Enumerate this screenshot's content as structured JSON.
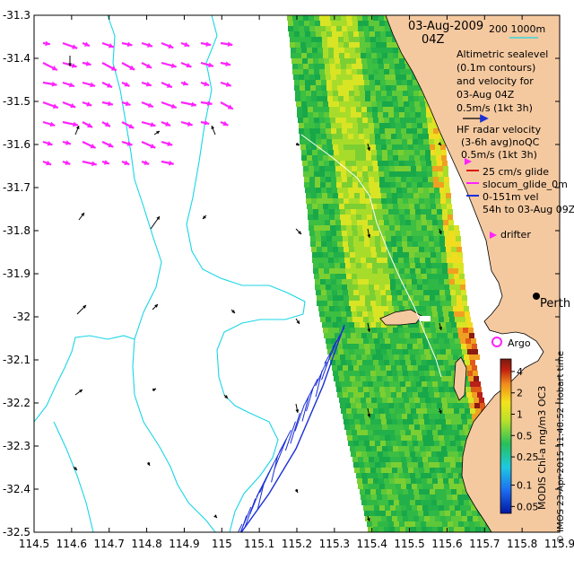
{
  "map": {
    "date": "03-Aug-2009",
    "time": "04Z",
    "scale_text": "200  1000m",
    "legend": {
      "altimetry": [
        "Altimetric sealevel",
        "(0.1m contours)",
        "and velocity for",
        "03-Aug 04Z",
        "0.5m/s (1kt 3h)"
      ],
      "hf_radar": [
        "HF radar velocity",
        "(3-6h avg)noQC",
        "0.5m/s (1kt 3h)"
      ],
      "glider": [
        "25 cm/s glide",
        "slocum_glide_0m",
        "0-151m vel",
        "54h to 03-Aug 09Z"
      ],
      "drifter": "drifter",
      "argo": "Argo",
      "city": "Perth"
    },
    "colorbar": {
      "title": "MODIS Chl-a mg/m3 OC3",
      "ticks": [
        "4",
        "2",
        "1",
        "0.5",
        "0.25",
        "0.1",
        "0.05"
      ],
      "tick_values": [
        4,
        2,
        1,
        0.5,
        0.25,
        0.1,
        0.05
      ]
    },
    "credit": "© IMOS 23-Apr-2015 11:48:52 Hobart time",
    "x_axis": {
      "ticks": [
        "114.5",
        "114.6",
        "114.7",
        "114.8",
        "114.9",
        "115",
        "115.1",
        "115.2",
        "115.3",
        "115.4",
        "115.5",
        "115.6",
        "115.7",
        "115.8",
        "115.9"
      ],
      "values": [
        114.5,
        114.6,
        114.7,
        114.8,
        114.9,
        115.0,
        115.1,
        115.2,
        115.3,
        115.4,
        115.5,
        115.6,
        115.7,
        115.8,
        115.9
      ]
    },
    "y_axis": {
      "ticks": [
        "-31.3",
        "-31.4",
        "-31.5",
        "-31.6",
        "-31.7",
        "-31.8",
        "-31.9",
        "-32",
        "-32.1",
        "-32.2",
        "-32.3",
        "-32.4",
        "-32.5"
      ],
      "values": [
        -31.3,
        -31.4,
        -31.5,
        -31.6,
        -31.7,
        -31.8,
        -31.9,
        -32.0,
        -32.1,
        -32.2,
        -32.3,
        -32.4,
        -32.5
      ]
    },
    "colors": {
      "land": "#f5c9a0",
      "hf_radar": "#ff22ff",
      "glider": "#1a2fd6",
      "isobath": "#19d6e6",
      "argo": "#ff22ff"
    }
  }
}
